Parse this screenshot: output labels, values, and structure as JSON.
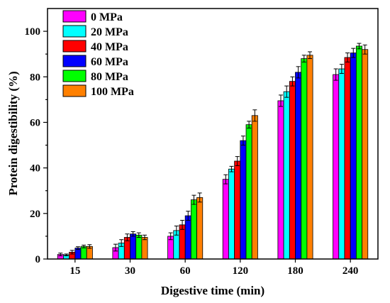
{
  "chart_data": {
    "type": "bar",
    "title": "",
    "xlabel": "Digestive time (min)",
    "ylabel": "Protein digestibility (%)",
    "ylim": [
      0,
      110
    ],
    "yticks": [
      0,
      20,
      40,
      60,
      80,
      100
    ],
    "categories": [
      "15",
      "30",
      "60",
      "120",
      "180",
      "240"
    ],
    "legend_position": "top-left",
    "grid": false,
    "series": [
      {
        "name": "0 MPa",
        "color": "#ff00ff",
        "values": [
          2.0,
          5.0,
          10.0,
          35.0,
          69.5,
          81.0
        ],
        "errors": [
          0.6,
          1.5,
          1.5,
          2.0,
          2.5,
          2.5
        ]
      },
      {
        "name": "20 MPa",
        "color": "#00ffff",
        "values": [
          1.8,
          7.0,
          12.5,
          39.5,
          73.5,
          83.5
        ],
        "errors": [
          0.4,
          1.5,
          2.0,
          1.2,
          2.5,
          2.0
        ]
      },
      {
        "name": "40 MPa",
        "color": "#ff0000",
        "values": [
          3.0,
          9.5,
          15.0,
          43.0,
          78.0,
          88.5
        ],
        "errors": [
          0.8,
          1.5,
          2.0,
          2.0,
          2.0,
          2.0
        ]
      },
      {
        "name": "60 MPa",
        "color": "#0000ff",
        "values": [
          4.8,
          11.0,
          19.0,
          52.0,
          82.0,
          90.5
        ],
        "errors": [
          0.6,
          1.0,
          2.0,
          2.0,
          2.5,
          2.0
        ]
      },
      {
        "name": "80 MPa",
        "color": "#00ff00",
        "values": [
          5.5,
          10.5,
          26.0,
          59.0,
          88.0,
          93.5
        ],
        "errors": [
          0.6,
          1.0,
          2.0,
          1.5,
          1.5,
          1.2
        ]
      },
      {
        "name": "100 MPa",
        "color": "#ff8000",
        "values": [
          5.5,
          9.5,
          27.0,
          63.0,
          89.5,
          92.0
        ],
        "errors": [
          0.8,
          1.0,
          2.0,
          2.5,
          1.5,
          2.0
        ]
      }
    ]
  }
}
